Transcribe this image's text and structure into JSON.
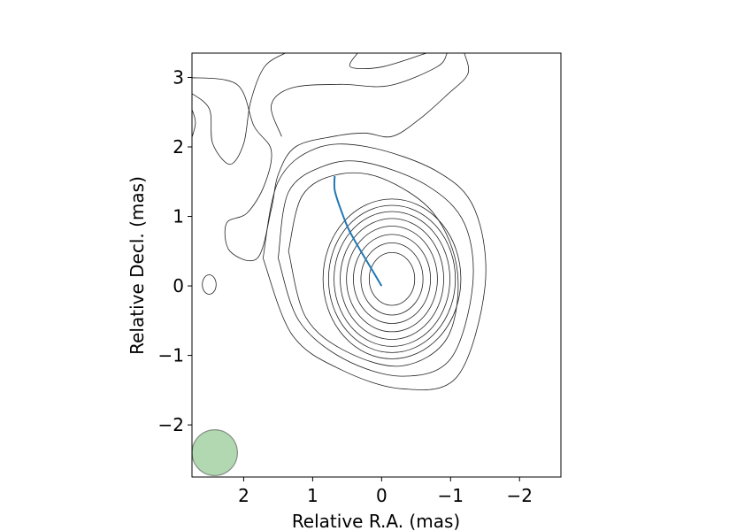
{
  "chart_data": {
    "type": "contour",
    "xlabel": "Relative R.A. (mas)",
    "ylabel": "Relative Decl. (mas)",
    "xlim": [
      2.75,
      -2.6
    ],
    "ylim": [
      -2.75,
      3.35
    ],
    "x_inverted": true,
    "xticks": [
      2,
      1,
      0,
      -1,
      -2
    ],
    "xtick_labels": [
      "2",
      "1",
      "0",
      "−1",
      "−2"
    ],
    "yticks": [
      -2,
      -1,
      0,
      1,
      2,
      3
    ],
    "ytick_labels": [
      "−2",
      "−1",
      "0",
      "1",
      "2",
      "3"
    ],
    "grid": false,
    "core": {
      "x": -0.15,
      "y": 0.1
    },
    "core_contours": [
      {
        "a": 0.33,
        "b": 0.38
      },
      {
        "a": 0.45,
        "b": 0.52
      },
      {
        "a": 0.56,
        "b": 0.64
      },
      {
        "a": 0.66,
        "b": 0.76
      },
      {
        "a": 0.75,
        "b": 0.87
      },
      {
        "a": 0.84,
        "b": 0.97
      },
      {
        "a": 0.92,
        "b": 1.06
      },
      {
        "a": 1.0,
        "b": 1.15
      }
    ],
    "outer_contours": [
      [
        [
          1.72,
          0.4
        ],
        [
          1.5,
          1.5
        ],
        [
          0.95,
          1.98
        ],
        [
          0.2,
          2.0
        ],
        [
          -0.8,
          1.65
        ],
        [
          -1.35,
          1.1
        ],
        [
          -1.5,
          0.0
        ],
        [
          -1.1,
          -1.3
        ],
        [
          -0.3,
          -1.48
        ],
        [
          0.6,
          -1.2
        ],
        [
          1.3,
          -0.7
        ],
        [
          1.72,
          0.4
        ]
      ],
      [
        [
          1.5,
          0.4
        ],
        [
          1.35,
          1.35
        ],
        [
          0.85,
          1.72
        ],
        [
          0.25,
          1.78
        ],
        [
          -0.65,
          1.45
        ],
        [
          -1.2,
          0.9
        ],
        [
          -1.32,
          0.0
        ],
        [
          -1.0,
          -1.05
        ],
        [
          -0.3,
          -1.3
        ],
        [
          0.55,
          -1.05
        ],
        [
          1.2,
          -0.5
        ],
        [
          1.5,
          0.4
        ]
      ],
      [
        [
          1.35,
          0.5
        ],
        [
          1.15,
          1.3
        ],
        [
          0.65,
          1.6
        ],
        [
          0.0,
          1.55
        ],
        [
          -0.75,
          1.05
        ],
        [
          -1.1,
          0.2
        ],
        [
          -0.95,
          -0.75
        ],
        [
          -0.3,
          -1.15
        ],
        [
          0.5,
          -0.95
        ],
        [
          1.1,
          -0.45
        ],
        [
          1.35,
          0.5
        ]
      ],
      [
        [
          2.8,
          3.0
        ],
        [
          2.1,
          2.9
        ],
        [
          1.85,
          2.3
        ],
        [
          1.6,
          1.95
        ],
        [
          1.7,
          1.45
        ],
        [
          1.95,
          1.05
        ],
        [
          2.25,
          0.9
        ],
        [
          2.2,
          0.5
        ],
        [
          1.8,
          0.4
        ],
        [
          1.6,
          1.1
        ],
        [
          1.5,
          1.6
        ],
        [
          1.25,
          2.0
        ],
        [
          0.7,
          2.15
        ],
        [
          0.25,
          2.2
        ],
        [
          -0.15,
          2.15
        ],
        [
          -0.55,
          2.4
        ],
        [
          -0.95,
          2.75
        ],
        [
          -1.25,
          3.05
        ],
        [
          -1.2,
          3.35
        ]
      ],
      [
        [
          2.8,
          2.8
        ],
        [
          2.5,
          2.55
        ],
        [
          2.45,
          2.05
        ],
        [
          2.2,
          1.75
        ],
        [
          2.0,
          2.05
        ],
        [
          1.9,
          2.65
        ],
        [
          1.7,
          3.15
        ],
        [
          1.4,
          3.35
        ]
      ],
      [
        [
          1.45,
          2.15
        ],
        [
          1.6,
          2.6
        ],
        [
          1.3,
          2.85
        ],
        [
          0.6,
          2.9
        ],
        [
          -0.1,
          2.88
        ],
        [
          -0.8,
          3.15
        ],
        [
          -0.95,
          3.35
        ]
      ],
      [
        [
          0.35,
          3.35
        ],
        [
          0.45,
          3.15
        ],
        [
          0.0,
          3.15
        ],
        [
          -0.65,
          3.35
        ]
      ],
      [
        [
          2.8,
          2.65
        ],
        [
          2.7,
          2.35
        ],
        [
          2.8,
          2.0
        ]
      ]
    ],
    "jet_path": [
      [
        0.0,
        0.0
      ],
      [
        0.18,
        0.3
      ],
      [
        0.33,
        0.55
      ],
      [
        0.48,
        0.82
      ],
      [
        0.6,
        1.12
      ],
      [
        0.68,
        1.38
      ],
      [
        0.68,
        1.58
      ]
    ],
    "small_blob": {
      "x": 2.5,
      "y": 0.02,
      "rx": 0.1,
      "ry": 0.14
    },
    "beam": {
      "x": 2.42,
      "y": -2.4,
      "r": 0.33,
      "color": "#66b266"
    },
    "colors": {
      "contour": "#222222",
      "jet": "#1f77b4",
      "beam": "#66b266"
    }
  }
}
